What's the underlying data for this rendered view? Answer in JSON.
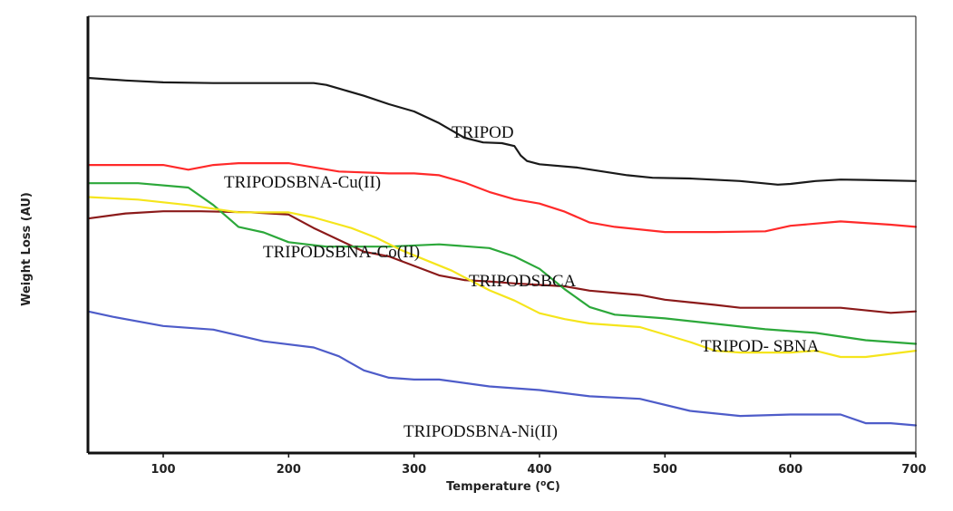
{
  "chart_data": {
    "type": "line",
    "title": "",
    "xlabel": "Temperature (°C)",
    "xlabel_prefix": "Temperature (",
    "xlabel_unit": "°C",
    "xlabel_suffix": ")",
    "ylabel": "Weight Loss (AU)",
    "xlim": [
      40,
      700
    ],
    "ylim": [
      0,
      100
    ],
    "xticks": [
      100,
      200,
      300,
      400,
      500,
      600,
      700
    ],
    "grid": false,
    "series": [
      {
        "name": "TRIPOD",
        "color": "#1a1a1a",
        "x": [
          40,
          70,
          100,
          140,
          180,
          220,
          230,
          240,
          260,
          280,
          300,
          320,
          340,
          355,
          370,
          380,
          385,
          390,
          400,
          430,
          470,
          490,
          520,
          560,
          590,
          600,
          620,
          640,
          660,
          700
        ],
        "y": [
          98.5,
          97.8,
          97.3,
          97.1,
          97.1,
          97.1,
          96.6,
          95.6,
          93.6,
          91.3,
          89.3,
          86.1,
          82.1,
          80.8,
          80.6,
          79.8,
          77.2,
          75.7,
          74.8,
          73.9,
          71.8,
          71.1,
          70.9,
          70.2,
          69.2,
          69.4,
          70.2,
          70.6,
          70.5,
          70.2
        ]
      },
      {
        "name": "TRIPODSBNA-Cu(II)",
        "color": "#ff2a2a",
        "x": [
          40,
          80,
          100,
          120,
          140,
          160,
          200,
          240,
          280,
          300,
          320,
          340,
          360,
          380,
          400,
          420,
          440,
          460,
          500,
          540,
          580,
          600,
          640,
          680,
          700
        ],
        "y": [
          74.6,
          74.6,
          74.6,
          73.3,
          74.6,
          75.1,
          75.1,
          72.8,
          72.3,
          72.3,
          71.8,
          69.8,
          67.2,
          65.2,
          64.0,
          61.8,
          58.8,
          57.6,
          56.2,
          56.2,
          56.4,
          57.9,
          59.1,
          58.2,
          57.6
        ]
      },
      {
        "name": "TRIPODSBNA-Co(II)",
        "color": "#8b1a1a",
        "x": [
          40,
          70,
          100,
          130,
          170,
          200,
          220,
          260,
          280,
          320,
          340,
          360,
          380,
          420,
          440,
          480,
          500,
          540,
          560,
          600,
          640,
          680,
          700
        ],
        "y": [
          59.9,
          61.3,
          61.9,
          61.9,
          61.6,
          61.0,
          57.3,
          50.8,
          49.5,
          44.3,
          43.0,
          42.6,
          42.1,
          41.3,
          40.1,
          38.9,
          37.6,
          36.2,
          35.4,
          35.4,
          35.4,
          34.0,
          34.4
        ]
      },
      {
        "name": "TRIPODSBCA",
        "color": "#2ca83a",
        "x": [
          40,
          80,
          120,
          140,
          160,
          180,
          200,
          230,
          260,
          280,
          320,
          360,
          380,
          400,
          420,
          440,
          460,
          500,
          540,
          580,
          620,
          660,
          700
        ],
        "y": [
          69.6,
          69.6,
          68.4,
          63.6,
          57.6,
          56.1,
          53.4,
          52.2,
          52.2,
          52.2,
          52.8,
          51.8,
          49.5,
          46.1,
          40.5,
          35.6,
          33.5,
          32.5,
          31.0,
          29.5,
          28.5,
          26.5,
          25.5
        ]
      },
      {
        "name": "TRIPOD- SBNA",
        "color": "#f5e51c",
        "x": [
          40,
          80,
          120,
          160,
          200,
          220,
          250,
          270,
          290,
          330,
          360,
          380,
          400,
          420,
          440,
          480,
          520,
          540,
          560,
          600,
          620,
          640,
          660,
          700
        ],
        "y": [
          65.8,
          65.1,
          63.6,
          61.6,
          61.6,
          60.2,
          57.3,
          54.6,
          51.2,
          45.6,
          40.2,
          37.4,
          33.9,
          32.3,
          31.1,
          30.1,
          26.0,
          23.6,
          23.1,
          23.1,
          23.6,
          21.9,
          21.9,
          23.6
        ]
      },
      {
        "name": "TRIPODSBNA-Ni(II)",
        "color": "#4e5cc9",
        "x": [
          40,
          60,
          100,
          140,
          180,
          220,
          240,
          260,
          280,
          300,
          320,
          360,
          400,
          440,
          480,
          520,
          560,
          600,
          640,
          660,
          680,
          700
        ],
        "y": [
          34.4,
          32.9,
          30.4,
          29.4,
          26.2,
          24.5,
          22.1,
          18.2,
          16.2,
          15.7,
          15.7,
          13.8,
          12.8,
          11.1,
          10.4,
          7.1,
          5.7,
          6.1,
          6.1,
          3.7,
          3.7,
          3.1
        ]
      }
    ],
    "annotations": [
      {
        "text": "TRIPOD",
        "series": "TRIPOD"
      },
      {
        "text": "TRIPODSBNA-Cu(II)",
        "series": "TRIPODSBNA-Cu(II)"
      },
      {
        "text": "TRIPODSBNA-Co(II)",
        "series": "TRIPODSBNA-Co(II)"
      },
      {
        "text": "TRIPODSBCA",
        "series": "TRIPODSBCA"
      },
      {
        "text": "TRIPOD- SBNA",
        "series": "TRIPOD- SBNA"
      },
      {
        "text": "TRIPODSBNA-Ni(II)",
        "series": "TRIPODSBNA-Ni(II)"
      }
    ]
  }
}
